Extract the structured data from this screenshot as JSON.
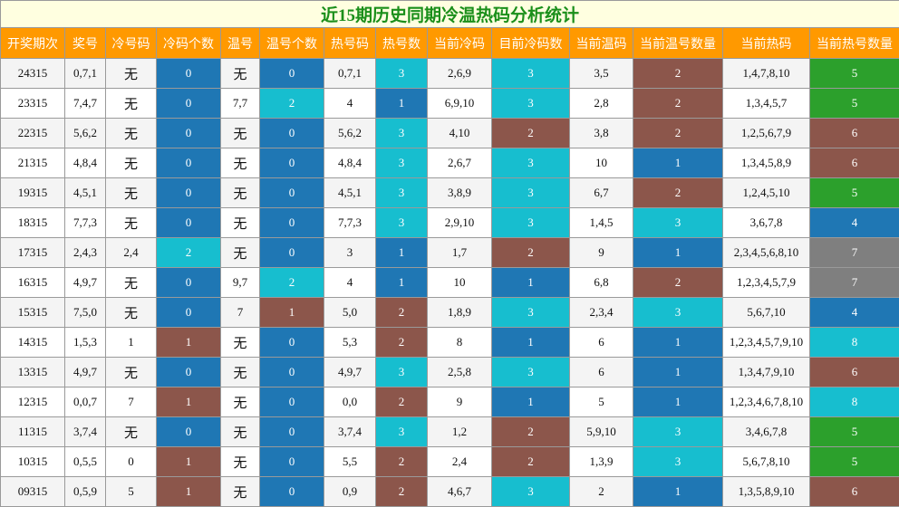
{
  "title": "近15期历史同期冷温热码分析统计",
  "colors": {
    "header_bg": "#ff9900",
    "title_bg": "#ffffe0",
    "title_text": "#1a8f1a",
    "cool_blue": "#1f77b4",
    "cyan": "#17becf",
    "brown": "#8c564b",
    "green": "#2ca02c",
    "gray": "#7f7f7f"
  },
  "headers": [
    "开奖期次",
    "奖号",
    "冷号码",
    "冷码个数",
    "温号",
    "温号个数",
    "热号码",
    "热号数",
    "当前冷码",
    "目前冷码数",
    "当前温码",
    "当前温号数量",
    "当前热码",
    "当前热号数量"
  ],
  "rows": [
    [
      "24315",
      "0,7,1",
      "无",
      "0",
      "无",
      "0",
      "0,7,1",
      "3",
      "2,6,9",
      "3",
      "3,5",
      "2",
      "1,4,7,8,10",
      "5"
    ],
    [
      "23315",
      "7,4,7",
      "无",
      "0",
      "7,7",
      "2",
      "4",
      "1",
      "6,9,10",
      "3",
      "2,8",
      "2",
      "1,3,4,5,7",
      "5"
    ],
    [
      "22315",
      "5,6,2",
      "无",
      "0",
      "无",
      "0",
      "5,6,2",
      "3",
      "4,10",
      "2",
      "3,8",
      "2",
      "1,2,5,6,7,9",
      "6"
    ],
    [
      "21315",
      "4,8,4",
      "无",
      "0",
      "无",
      "0",
      "4,8,4",
      "3",
      "2,6,7",
      "3",
      "10",
      "1",
      "1,3,4,5,8,9",
      "6"
    ],
    [
      "19315",
      "4,5,1",
      "无",
      "0",
      "无",
      "0",
      "4,5,1",
      "3",
      "3,8,9",
      "3",
      "6,7",
      "2",
      "1,2,4,5,10",
      "5"
    ],
    [
      "18315",
      "7,7,3",
      "无",
      "0",
      "无",
      "0",
      "7,7,3",
      "3",
      "2,9,10",
      "3",
      "1,4,5",
      "3",
      "3,6,7,8",
      "4"
    ],
    [
      "17315",
      "2,4,3",
      "2,4",
      "2",
      "无",
      "0",
      "3",
      "1",
      "1,7",
      "2",
      "9",
      "1",
      "2,3,4,5,6,8,10",
      "7"
    ],
    [
      "16315",
      "4,9,7",
      "无",
      "0",
      "9,7",
      "2",
      "4",
      "1",
      "10",
      "1",
      "6,8",
      "2",
      "1,2,3,4,5,7,9",
      "7"
    ],
    [
      "15315",
      "7,5,0",
      "无",
      "0",
      "7",
      "1",
      "5,0",
      "2",
      "1,8,9",
      "3",
      "2,3,4",
      "3",
      "5,6,7,10",
      "4"
    ],
    [
      "14315",
      "1,5,3",
      "1",
      "1",
      "无",
      "0",
      "5,3",
      "2",
      "8",
      "1",
      "6",
      "1",
      "1,2,3,4,5,7,9,10",
      "8"
    ],
    [
      "13315",
      "4,9,7",
      "无",
      "0",
      "无",
      "0",
      "4,9,7",
      "3",
      "2,5,8",
      "3",
      "6",
      "1",
      "1,3,4,7,9,10",
      "6"
    ],
    [
      "12315",
      "0,0,7",
      "7",
      "1",
      "无",
      "0",
      "0,0",
      "2",
      "9",
      "1",
      "5",
      "1",
      "1,2,3,4,6,7,8,10",
      "8"
    ],
    [
      "11315",
      "3,7,4",
      "无",
      "0",
      "无",
      "0",
      "3,7,4",
      "3",
      "1,2",
      "2",
      "5,9,10",
      "3",
      "3,4,6,7,8",
      "5"
    ],
    [
      "10315",
      "0,5,5",
      "0",
      "1",
      "无",
      "0",
      "5,5",
      "2",
      "2,4",
      "2",
      "1,3,9",
      "3",
      "5,6,7,8,10",
      "5"
    ],
    [
      "09315",
      "0,5,9",
      "5",
      "1",
      "无",
      "0",
      "0,9",
      "2",
      "4,6,7",
      "3",
      "2",
      "1",
      "1,3,5,8,9,10",
      "6"
    ]
  ]
}
